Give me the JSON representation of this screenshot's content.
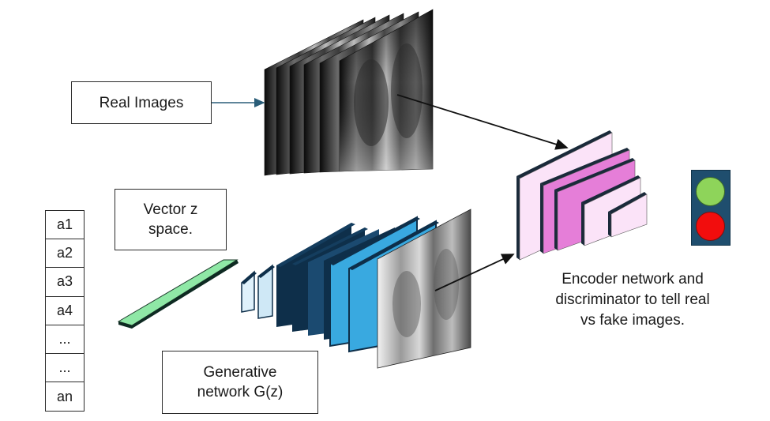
{
  "labels": {
    "real_images": "Real Images",
    "vector_z_line1": "Vector z",
    "vector_z_line2": "space.",
    "generative_line1": "Generative",
    "generative_line2": "network G(z)",
    "caption_line1": "Encoder network and",
    "caption_line2": "discriminator to tell real",
    "caption_line3": "vs fake images."
  },
  "vector_items": [
    "a1",
    "a2",
    "a3",
    "a4",
    "...",
    "...",
    "an"
  ],
  "colors": {
    "vector_bar": "#8fe8a6",
    "generator_layer": "#39a9e0",
    "generator_layer_dark": "#0e2f4a",
    "encoder_layer": "#e57ed8",
    "encoder_layer_light": "#fbe3f8",
    "encoder_layer_dark": "#1a2a3a",
    "signal_housing": "#1f4e6e",
    "lamp_real": "#8ed45a",
    "lamp_fake": "#f20d0d"
  },
  "icons": {
    "real_images_stack": "xray-image-stack",
    "generated_image": "xray-image",
    "signal": "traffic-light-icon"
  }
}
